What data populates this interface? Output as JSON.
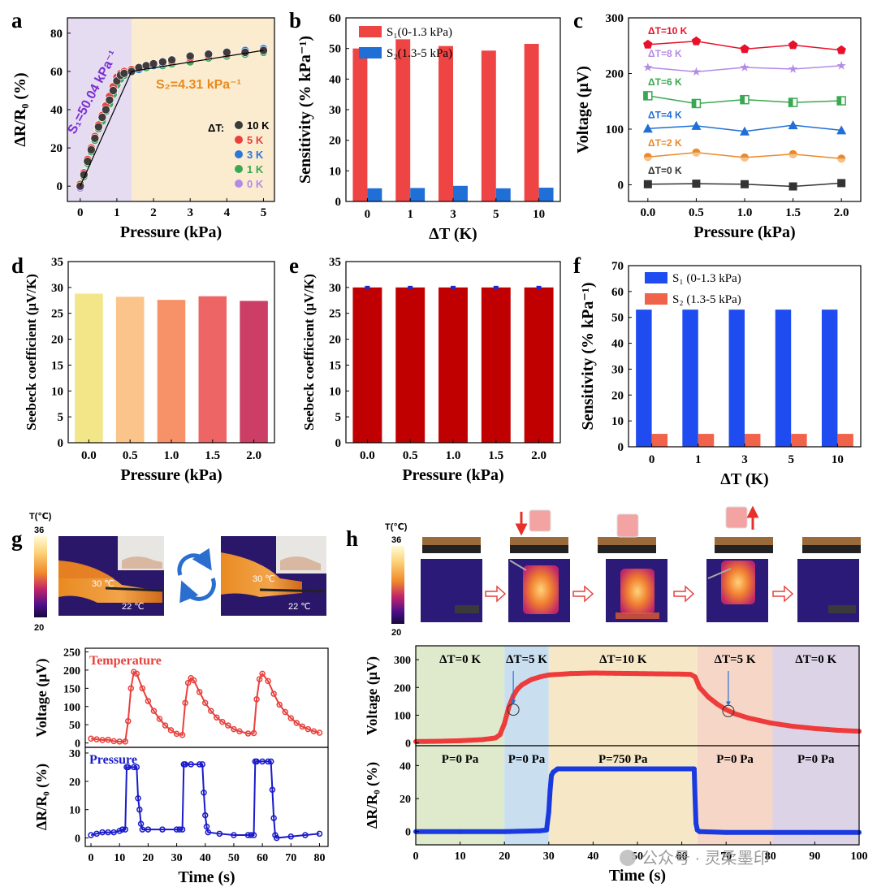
{
  "watermark": "公众号 · 灵柔墨印",
  "panels": {
    "a": "a",
    "b": "b",
    "c": "c",
    "d": "d",
    "e": "e",
    "f": "f",
    "g": "g",
    "h": "h"
  },
  "annotations": {
    "a_s1": "S₁=50.04 kPa⁻¹",
    "a_s2": "S₂=4.31 kPa⁻¹",
    "a_legend_title": "ΔT:",
    "g_colorbar_label": "T(℃)",
    "g_colorbar_max": "36",
    "g_colorbar_min": "20",
    "g_t_hot_1": "30 ℃",
    "g_t_cold_1": "22 ℃",
    "g_t_hot_2": "30 ℃",
    "g_t_cold_2": "22 ℃",
    "h_colorbar_label": "T(℃)",
    "h_colorbar_max": "36",
    "h_colorbar_min": "20"
  },
  "colors": {
    "black": "#333333",
    "red": "#e8403c",
    "blue": "#1f6fd6",
    "green": "#3aa852",
    "purple": "#a77fdc",
    "orange": "#e98b2a",
    "dark_red": "#c00000",
    "bar_blue": "#1e4cf0",
    "bar_salmon": "#f0634a",
    "pressure_blue": "#1a1acc",
    "s_purple": "#7b2fd1",
    "s_orange": "#e98a1c"
  },
  "chart_data": [
    {
      "id": "a",
      "type": "scatter",
      "title": "",
      "xlabel": "Pressure (kPa)",
      "ylabel": "ΔR/R₀ (%)",
      "xlim": [
        -0.35,
        5.3
      ],
      "ylim": [
        -8,
        88
      ],
      "xticks": [
        0,
        1,
        2,
        3,
        4,
        5
      ],
      "yticks": [
        0,
        20,
        40,
        60,
        80
      ],
      "x": [
        0,
        0.1,
        0.2,
        0.3,
        0.4,
        0.5,
        0.6,
        0.7,
        0.8,
        0.9,
        1.0,
        1.1,
        1.2,
        1.4,
        1.6,
        1.8,
        2.0,
        2.25,
        2.5,
        3.0,
        3.5,
        4.0,
        4.5,
        5.0
      ],
      "series": [
        {
          "name": "10 K",
          "values": [
            0,
            6,
            13,
            19,
            25,
            31,
            36,
            40,
            45,
            50,
            55,
            58,
            59,
            60,
            62,
            63,
            64,
            65,
            66,
            68,
            69,
            70,
            70,
            71
          ]
        },
        {
          "name": "5 K",
          "values": [
            1,
            7,
            14,
            20,
            26,
            32,
            37,
            42,
            47,
            52,
            57,
            59,
            60,
            61,
            62,
            63,
            64,
            65,
            65,
            67,
            68,
            69,
            70,
            71
          ]
        },
        {
          "name": "3 K",
          "values": [
            0,
            6,
            13,
            19,
            25,
            31,
            36,
            41,
            46,
            51,
            56,
            58,
            59,
            60,
            61,
            63,
            63,
            64,
            65,
            67,
            69,
            70,
            71,
            72
          ]
        },
        {
          "name": "1 K",
          "values": [
            0,
            5,
            12,
            18,
            24,
            30,
            34,
            39,
            43,
            48,
            53,
            56,
            58,
            60,
            61,
            62,
            63,
            63,
            64,
            65,
            67,
            68,
            69,
            70
          ]
        },
        {
          "name": "0 K",
          "values": [
            -1,
            5,
            12,
            18,
            24,
            30,
            35,
            40,
            44,
            49,
            54,
            57,
            58,
            60,
            61,
            62,
            64,
            65,
            66,
            67,
            68,
            69,
            70,
            71
          ]
        }
      ],
      "fit_line": {
        "x": [
          0,
          1.4,
          5.0
        ],
        "y": [
          0,
          60,
          71
        ]
      },
      "shaded_regions": [
        {
          "from": -0.35,
          "to": 1.4,
          "name": "S1"
        },
        {
          "from": 1.4,
          "to": 5.3,
          "name": "S2"
        }
      ]
    },
    {
      "id": "b",
      "type": "bar",
      "title": "",
      "xlabel": "ΔT (K)",
      "ylabel": "Sensitivity (% kPa⁻¹)",
      "categories": [
        "0",
        "1",
        "3",
        "5",
        "10"
      ],
      "ylim": [
        0,
        60
      ],
      "yticks": [
        0,
        10,
        20,
        30,
        40,
        50,
        60
      ],
      "series": [
        {
          "name": "S₁(0-1.3 kPa)",
          "values": [
            50,
            53,
            50.8,
            49.3,
            51.5
          ]
        },
        {
          "name": "S₂(1.3-5 kPa)",
          "values": [
            4.3,
            4.4,
            5.1,
            4.3,
            4.5
          ]
        }
      ]
    },
    {
      "id": "c",
      "type": "line",
      "title": "",
      "xlabel": "Pressure (kPa)",
      "ylabel": "Voltage (μV)",
      "x": [
        0.0,
        0.5,
        1.0,
        1.5,
        2.0
      ],
      "xlim": [
        -0.2,
        2.2
      ],
      "ylim": [
        -30,
        300
      ],
      "xticks": [
        0.0,
        0.5,
        1.0,
        1.5,
        2.0
      ],
      "yticks": [
        0,
        100,
        200,
        300
      ],
      "series": [
        {
          "name": "ΔT=10 K",
          "values": [
            252,
            258,
            244,
            251,
            242
          ]
        },
        {
          "name": "ΔT=8 K",
          "values": [
            211,
            203,
            211,
            208,
            214
          ]
        },
        {
          "name": "ΔT=6 K",
          "values": [
            160,
            146,
            153,
            148,
            151
          ]
        },
        {
          "name": "ΔT=4 K",
          "values": [
            101,
            106,
            96,
            107,
            98
          ]
        },
        {
          "name": "ΔT=2 K",
          "values": [
            50,
            58,
            49,
            55,
            47
          ]
        },
        {
          "name": "ΔT=0 K",
          "values": [
            1,
            2,
            1,
            -3,
            3
          ]
        }
      ]
    },
    {
      "id": "d",
      "type": "bar",
      "title": "",
      "xlabel": "Pressure (kPa)",
      "ylabel": "Seebeck coefficient (μV/K)",
      "categories": [
        "0.0",
        "0.5",
        "1.0",
        "1.5",
        "2.0"
      ],
      "ylim": [
        0,
        35
      ],
      "yticks": [
        0,
        5,
        10,
        15,
        20,
        25,
        30,
        35
      ],
      "values": [
        28.8,
        28.2,
        27.6,
        28.3,
        27.4
      ],
      "bar_colors": [
        "#f2e688",
        "#fbc48a",
        "#f79268",
        "#ee6565",
        "#cc3e65"
      ]
    },
    {
      "id": "e",
      "type": "bar",
      "title": "",
      "xlabel": "Pressure (kPa)",
      "ylabel": "Seebeck coefficient (μV/K)",
      "categories": [
        "0.0",
        "0.5",
        "1.0",
        "1.5",
        "2.0"
      ],
      "ylim": [
        0,
        35
      ],
      "yticks": [
        0,
        5,
        10,
        15,
        20,
        25,
        30,
        35
      ],
      "values": [
        30,
        30,
        30,
        30,
        30
      ]
    },
    {
      "id": "f",
      "type": "bar",
      "title": "",
      "xlabel": "ΔT (K)",
      "ylabel": "Sensitivity (% kPa⁻¹)",
      "categories": [
        "0",
        "1",
        "3",
        "5",
        "10"
      ],
      "ylim": [
        0,
        70
      ],
      "yticks": [
        0,
        10,
        20,
        30,
        40,
        50,
        60,
        70
      ],
      "series": [
        {
          "name": "S₁ (0-1.3 kPa)",
          "values": [
            53,
            53,
            53,
            53,
            53
          ]
        },
        {
          "name": "S₂ (1.3-5 kPa)",
          "values": [
            5,
            5,
            5,
            5,
            5
          ]
        }
      ]
    },
    {
      "id": "g_top",
      "type": "line",
      "title": "Temperature",
      "xlabel": "",
      "ylabel": "Voltage (μV)",
      "xlim": [
        -2,
        83
      ],
      "ylim": [
        -12,
        260
      ],
      "yticks": [
        0,
        50,
        100,
        150,
        200,
        250
      ],
      "x": [
        0,
        2,
        4,
        6,
        8,
        10,
        12,
        13,
        14,
        15,
        16,
        18,
        20,
        22,
        24,
        26,
        28,
        30,
        32,
        33,
        34,
        35,
        36,
        38,
        40,
        42,
        44,
        46,
        48,
        50,
        52,
        55,
        57,
        58,
        59,
        60,
        62,
        64,
        66,
        68,
        70,
        72,
        74,
        76,
        78,
        80
      ],
      "values": [
        12,
        10,
        8,
        9,
        5,
        4,
        4,
        60,
        150,
        195,
        190,
        150,
        115,
        88,
        66,
        48,
        35,
        25,
        22,
        110,
        165,
        178,
        172,
        140,
        110,
        88,
        70,
        58,
        48,
        38,
        32,
        26,
        27,
        120,
        175,
        190,
        170,
        135,
        105,
        85,
        68,
        55,
        45,
        38,
        32,
        28
      ]
    },
    {
      "id": "g_bottom",
      "type": "line",
      "title": "Pressure",
      "xlabel": "Time (s)",
      "ylabel": "ΔR/R₀ (%)",
      "xlim": [
        -2,
        83
      ],
      "ylim": [
        -3,
        32
      ],
      "xticks": [
        0,
        10,
        20,
        30,
        40,
        50,
        60,
        70,
        80
      ],
      "yticks": [
        0,
        10,
        20,
        30
      ],
      "x": [
        0,
        2,
        4,
        6,
        8,
        10,
        11,
        12,
        12.5,
        13,
        15,
        16,
        16.5,
        17,
        17.5,
        18,
        20,
        25,
        30,
        31,
        32,
        32.5,
        33,
        35,
        38,
        39,
        39.5,
        40,
        40.5,
        41,
        45,
        50,
        55,
        56,
        57,
        57.5,
        58,
        60,
        62,
        63,
        63.5,
        64,
        64.5,
        65,
        70,
        75,
        80
      ],
      "values": [
        1,
        1.5,
        2,
        2,
        2,
        2.5,
        3,
        3,
        25,
        25,
        25,
        25,
        14,
        10,
        5,
        3,
        3,
        3,
        3,
        3,
        3,
        26,
        26,
        26,
        26,
        26,
        16,
        8,
        4,
        2,
        1.5,
        1,
        1,
        1,
        1,
        27,
        27,
        27,
        27,
        27,
        17,
        7,
        1,
        0,
        0.5,
        1,
        1.5
      ]
    },
    {
      "id": "h_top",
      "type": "line",
      "title": "",
      "xlabel": "",
      "ylabel": "Voltage (μV)",
      "xlim": [
        0,
        100
      ],
      "ylim": [
        -10,
        350
      ],
      "yticks": [
        0,
        100,
        200,
        300
      ],
      "x": [
        0,
        5,
        10,
        15,
        18,
        19,
        20,
        21,
        22,
        23,
        24,
        26,
        28,
        30,
        35,
        40,
        45,
        50,
        55,
        60,
        62,
        63,
        64,
        66,
        68,
        70,
        72,
        75,
        80,
        85,
        90,
        95,
        100
      ],
      "values": [
        5,
        6,
        8,
        12,
        18,
        30,
        70,
        130,
        170,
        195,
        210,
        228,
        238,
        245,
        250,
        252,
        251,
        250,
        249,
        248,
        247,
        238,
        200,
        165,
        140,
        120,
        105,
        90,
        72,
        60,
        52,
        46,
        42
      ],
      "regions": [
        {
          "from": 0,
          "to": 20,
          "label": "ΔT=0 K",
          "color": "#dfeacd"
        },
        {
          "from": 20,
          "to": 30,
          "label": "ΔT=5 K",
          "color": "#c9dff0"
        },
        {
          "from": 30,
          "to": 63.5,
          "label": "ΔT=10 K",
          "color": "#f6e8c6"
        },
        {
          "from": 63.5,
          "to": 80.5,
          "label": "ΔT=5 K",
          "color": "#f6d6c6"
        },
        {
          "from": 80.5,
          "to": 100,
          "label": "ΔT=0 K",
          "color": "#ddd3e6"
        }
      ]
    },
    {
      "id": "h_bottom",
      "type": "line",
      "title": "",
      "xlabel": "Time (s)",
      "ylabel": "ΔR/R₀ (%)",
      "xlim": [
        0,
        100
      ],
      "ylim": [
        -8,
        52
      ],
      "xticks": [
        0,
        10,
        20,
        30,
        40,
        50,
        60,
        70,
        80,
        90,
        100
      ],
      "yticks": [
        0,
        20,
        40
      ],
      "x": [
        0,
        10,
        20,
        28,
        29.5,
        30,
        30.3,
        30.6,
        31,
        32,
        40,
        50,
        60,
        62.8,
        63,
        63.2,
        63.5,
        64,
        70,
        80,
        90,
        100
      ],
      "values": [
        0,
        0,
        0,
        0.5,
        1,
        12,
        25,
        34,
        36,
        38,
        38,
        38,
        38,
        38,
        20,
        5,
        1,
        0,
        -0.5,
        -0.5,
        -0.5,
        -0.5
      ],
      "regions": [
        {
          "from": 0,
          "to": 20,
          "label": "P=0 Pa",
          "color": "#dfeacd"
        },
        {
          "from": 20,
          "to": 30,
          "label": "P=0 Pa",
          "color": "#c9dff0"
        },
        {
          "from": 30,
          "to": 63.5,
          "label": "P=750 Pa",
          "color": "#f6e8c6"
        },
        {
          "from": 63.5,
          "to": 80.5,
          "label": "P=0 Pa",
          "color": "#f6d6c6"
        },
        {
          "from": 80.5,
          "to": 100,
          "label": "P=0 Pa",
          "color": "#ddd3e6"
        }
      ]
    }
  ]
}
